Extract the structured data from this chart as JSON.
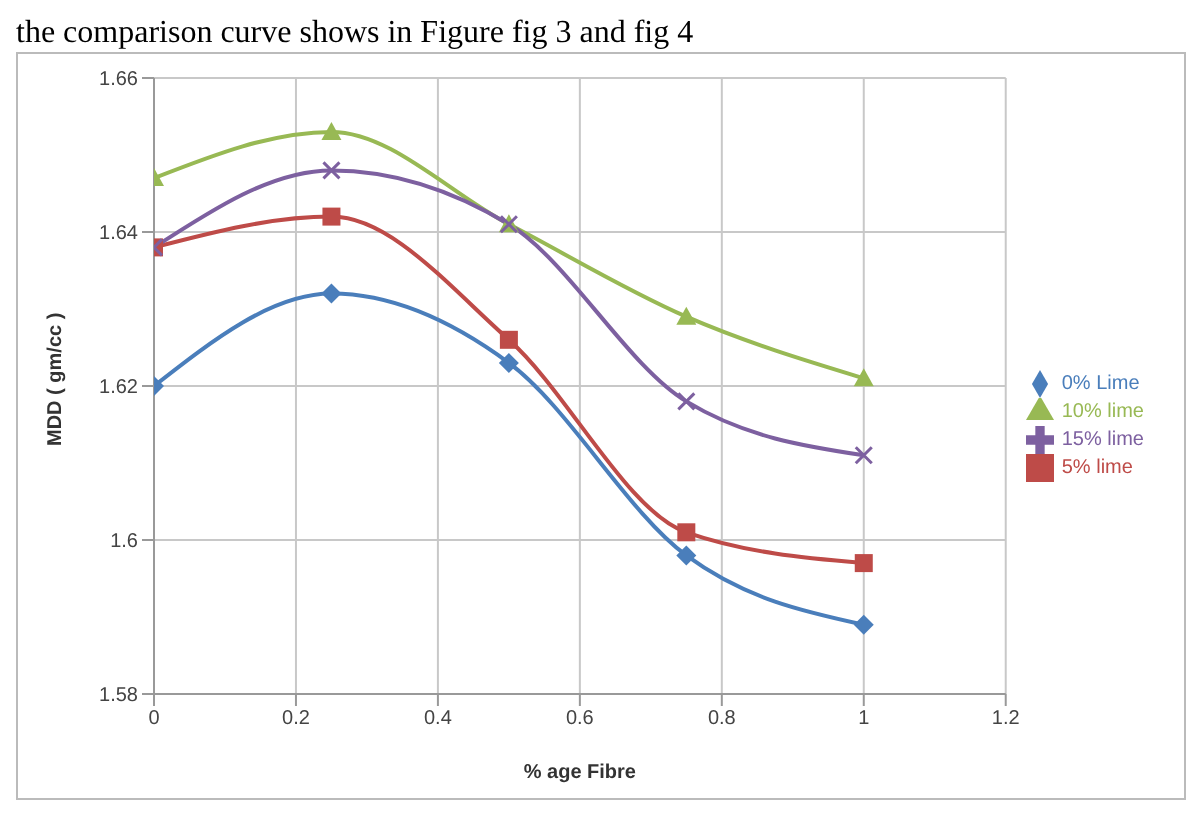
{
  "chart_data": {
    "type": "line",
    "annotations": [
      "the comparison curve shows in Figure fig 3 and fig 4"
    ],
    "xlabel": "% age Fibre",
    "ylabel": "MDD ( gm/cc )",
    "x": [
      0,
      0.25,
      0.5,
      0.75,
      1
    ],
    "series": [
      {
        "name": "0% Lime",
        "color": "#4a7ebb",
        "marker": "diamond",
        "values": [
          1.62,
          1.632,
          1.623,
          1.598,
          1.589
        ]
      },
      {
        "name": "5% lime",
        "color": "#be4b48",
        "marker": "square",
        "values": [
          1.638,
          1.642,
          1.626,
          1.601,
          1.597
        ]
      },
      {
        "name": "10% lime",
        "color": "#98b954",
        "marker": "triangle",
        "values": [
          1.647,
          1.653,
          1.641,
          1.629,
          1.621
        ]
      },
      {
        "name": "15% lime",
        "color": "#7d60a0",
        "marker": "cross",
        "values": [
          1.638,
          1.648,
          1.641,
          1.618,
          1.611
        ]
      }
    ],
    "xlim": [
      0,
      1.2
    ],
    "xticks": [
      0,
      0.2,
      0.4,
      0.6,
      0.8,
      1,
      1.2
    ],
    "ylim": [
      1.58,
      1.66
    ],
    "yticks": [
      1.58,
      1.6,
      1.62,
      1.64,
      1.66
    ],
    "grid": true,
    "legend": "right",
    "line_style": "solid"
  }
}
